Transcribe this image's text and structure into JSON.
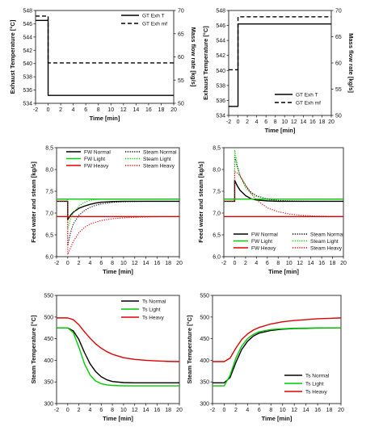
{
  "chart_data": [
    {
      "id": "p1",
      "type": "line",
      "xlabel": "Time [min]",
      "ylabel": "Exhaust Temperature [°C]",
      "ylabel2": "Mass flow rate [kg/s]",
      "xlim": [
        -2,
        20
      ],
      "ylim": [
        534,
        548
      ],
      "ylim2": [
        50,
        70
      ],
      "xticks": [
        "-2",
        "0",
        "2",
        "4",
        "6",
        "8",
        "10",
        "12",
        "14",
        "16",
        "18",
        "20"
      ],
      "yticks": [
        "534",
        "536",
        "538",
        "540",
        "542",
        "544",
        "546",
        "548"
      ],
      "yticks2": [
        "50",
        "55",
        "60",
        "65",
        "70"
      ],
      "legend_position": "top-right",
      "series": [
        {
          "name": "GT Exh T",
          "axis": "left",
          "color": "#000000",
          "dash": "solid",
          "x": [
            -2,
            0,
            0,
            20
          ],
          "y": [
            546.5,
            546.5,
            535.2,
            535.2
          ]
        },
        {
          "name": "GT Exh mf",
          "axis": "right",
          "color": "#000000",
          "dash": "dashed",
          "x": [
            -2,
            0,
            0,
            20
          ],
          "y": [
            68.8,
            68.8,
            58.7,
            58.7
          ]
        }
      ]
    },
    {
      "id": "p2",
      "type": "line",
      "xlabel": "Time [min]",
      "ylabel": "Exhaust Temperature [°C]",
      "ylabel2": "Mass flow rate [kg/s]",
      "xlim": [
        -2,
        20
      ],
      "ylim": [
        534,
        548
      ],
      "ylim2": [
        50,
        70
      ],
      "xticks": [
        "-2",
        "0",
        "2",
        "4",
        "6",
        "8",
        "10",
        "12",
        "14",
        "16",
        "18",
        "20"
      ],
      "yticks": [
        "534",
        "536",
        "538",
        "540",
        "542",
        "544",
        "546",
        "548"
      ],
      "yticks2": [
        "50",
        "55",
        "60",
        "65",
        "70"
      ],
      "legend_position": "bottom-right",
      "series": [
        {
          "name": "GT Exh T",
          "axis": "left",
          "color": "#000000",
          "dash": "solid",
          "x": [
            -2,
            0,
            0,
            20
          ],
          "y": [
            535.2,
            535.2,
            546.2,
            546.2
          ]
        },
        {
          "name": "GT Exh mf",
          "axis": "right",
          "color": "#000000",
          "dash": "dashed",
          "x": [
            -2,
            0,
            0,
            20
          ],
          "y": [
            58.7,
            58.7,
            68.8,
            68.8
          ]
        }
      ]
    },
    {
      "id": "p3",
      "type": "line",
      "xlabel": "Time [min]",
      "ylabel": "Feed water and steam [kg/s]",
      "xlim": [
        -2,
        20
      ],
      "ylim": [
        6.0,
        8.5
      ],
      "xticks": [
        "-2",
        "0",
        "2",
        "4",
        "6",
        "8",
        "10",
        "12",
        "14",
        "16",
        "18",
        "20"
      ],
      "yticks": [
        "6,0",
        "6,5",
        "7,0",
        "7,5",
        "8,0",
        "8,5"
      ],
      "legend_position": "top",
      "series": [
        {
          "name": "FW Normal",
          "color": "#000000",
          "dash": "solid",
          "x": [
            -2,
            0,
            0,
            0.5,
            1,
            2,
            3,
            4,
            5,
            6,
            8,
            10,
            14,
            20
          ],
          "y": [
            7.27,
            7.27,
            6.85,
            6.95,
            7.02,
            7.11,
            7.16,
            7.2,
            7.23,
            7.25,
            7.265,
            7.27,
            7.27,
            7.27
          ]
        },
        {
          "name": "FW Light",
          "color": "#00cc00",
          "dash": "solid",
          "x": [
            -2,
            20
          ],
          "y": [
            7.32,
            7.32
          ]
        },
        {
          "name": "FW Heavy",
          "color": "#e00000",
          "dash": "solid",
          "x": [
            -2,
            20
          ],
          "y": [
            6.92,
            6.92
          ]
        },
        {
          "name": "Steam Normal",
          "color": "#000000",
          "dash": "dotted",
          "x": [
            -2,
            0,
            0,
            0.5,
            1,
            2,
            3,
            4,
            5,
            6,
            8,
            10,
            14,
            20
          ],
          "y": [
            7.27,
            7.27,
            6.25,
            6.55,
            6.75,
            6.95,
            7.06,
            7.13,
            7.18,
            7.21,
            7.245,
            7.26,
            7.27,
            7.27
          ]
        },
        {
          "name": "Steam Light",
          "color": "#00cc00",
          "dash": "dotted",
          "x": [
            -2,
            0,
            0,
            0.5,
            1,
            2,
            3,
            4,
            5,
            6,
            8,
            20
          ],
          "y": [
            7.32,
            7.32,
            6.65,
            6.85,
            7.0,
            7.16,
            7.25,
            7.29,
            7.31,
            7.32,
            7.32,
            7.32
          ]
        },
        {
          "name": "Steam Heavy",
          "color": "#e00000",
          "dash": "dotted",
          "x": [
            -2,
            0,
            0,
            0.5,
            1,
            2,
            3,
            4,
            6,
            8,
            10,
            12,
            15,
            20
          ],
          "y": [
            7.27,
            7.27,
            6.05,
            6.2,
            6.35,
            6.55,
            6.67,
            6.75,
            6.83,
            6.87,
            6.89,
            6.905,
            6.915,
            6.92
          ]
        }
      ]
    },
    {
      "id": "p4",
      "type": "line",
      "xlabel": "Time [min]",
      "ylabel": "Feed water and steam [kg/s]",
      "xlim": [
        -2,
        20
      ],
      "ylim": [
        6.0,
        8.5
      ],
      "xticks": [
        "-2",
        "0",
        "2",
        "4",
        "6",
        "8",
        "10",
        "12",
        "14",
        "16",
        "18",
        "20"
      ],
      "yticks": [
        "6,0",
        "6,5",
        "7,0",
        "7,5",
        "8,0",
        "8,5"
      ],
      "legend_position": "bottom",
      "series": [
        {
          "name": "FW Normal",
          "color": "#000000",
          "dash": "solid",
          "x": [
            -2,
            0,
            0,
            0.5,
            1,
            2,
            3,
            4,
            6,
            8,
            20
          ],
          "y": [
            7.27,
            7.27,
            7.75,
            7.62,
            7.52,
            7.4,
            7.33,
            7.3,
            7.28,
            7.27,
            7.27
          ]
        },
        {
          "name": "FW Light",
          "color": "#00cc00",
          "dash": "solid",
          "x": [
            -2,
            20
          ],
          "y": [
            7.32,
            7.32
          ]
        },
        {
          "name": "FW Heavy",
          "color": "#e00000",
          "dash": "solid",
          "x": [
            -2,
            20
          ],
          "y": [
            6.92,
            6.92
          ]
        },
        {
          "name": "Steam Normal",
          "color": "#000000",
          "dash": "dotted",
          "x": [
            -2,
            0,
            0,
            0.5,
            1,
            2,
            3,
            4,
            6,
            8,
            10,
            14,
            20
          ],
          "y": [
            7.27,
            7.27,
            8.3,
            8.05,
            7.85,
            7.62,
            7.48,
            7.4,
            7.32,
            7.29,
            7.28,
            7.27,
            7.27
          ]
        },
        {
          "name": "Steam Light",
          "color": "#00cc00",
          "dash": "dotted",
          "x": [
            -2,
            0,
            0,
            0.5,
            1,
            2,
            3,
            4,
            5,
            6,
            8,
            20
          ],
          "y": [
            7.32,
            7.32,
            8.45,
            8.1,
            7.85,
            7.58,
            7.45,
            7.38,
            7.35,
            7.33,
            7.32,
            7.32
          ]
        },
        {
          "name": "Steam Heavy",
          "color": "#e00000",
          "dash": "dotted",
          "x": [
            -2,
            0,
            0,
            0.5,
            1,
            2,
            3,
            4,
            6,
            8,
            10,
            12,
            15,
            20
          ],
          "y": [
            7.27,
            7.27,
            7.95,
            7.92,
            7.85,
            7.65,
            7.45,
            7.3,
            7.12,
            7.03,
            6.98,
            6.95,
            6.93,
            6.92
          ]
        }
      ]
    },
    {
      "id": "p5",
      "type": "line",
      "xlabel": "Time [min]",
      "ylabel": "Steam Temperature [°C]",
      "xlim": [
        -2,
        20
      ],
      "ylim": [
        300,
        550
      ],
      "xticks": [
        "-2",
        "0",
        "2",
        "4",
        "6",
        "8",
        "10",
        "12",
        "14",
        "16",
        "18",
        "20"
      ],
      "yticks": [
        "300",
        "350",
        "400",
        "450",
        "500",
        "550"
      ],
      "legend_position": "top-right",
      "series": [
        {
          "name": "Ts Normal",
          "color": "#000000",
          "dash": "solid",
          "x": [
            -2,
            0,
            1,
            2,
            3,
            4,
            5,
            6,
            7,
            8,
            10,
            12,
            15,
            20
          ],
          "y": [
            475,
            475,
            468,
            448,
            418,
            392,
            374,
            362,
            355,
            351,
            348.5,
            348,
            348,
            348
          ]
        },
        {
          "name": "Ts Light",
          "color": "#00cc00",
          "dash": "solid",
          "x": [
            -2,
            0,
            1,
            2,
            3,
            4,
            5,
            6,
            7,
            8,
            10,
            14,
            20
          ],
          "y": [
            475,
            475,
            464,
            430,
            392,
            366,
            352,
            346,
            343,
            342,
            341,
            341,
            341
          ]
        },
        {
          "name": "Ts Heavy",
          "color": "#e00000",
          "dash": "solid",
          "x": [
            -2,
            0,
            1,
            2,
            3,
            4,
            5,
            6,
            7,
            8,
            10,
            12,
            14,
            16,
            18,
            20
          ],
          "y": [
            498,
            498,
            494,
            482,
            466,
            451,
            438,
            428,
            420,
            414,
            406,
            402,
            400,
            398.5,
            397.5,
            397
          ]
        }
      ]
    },
    {
      "id": "p6",
      "type": "line",
      "xlabel": "Time [min]",
      "ylabel": "Steam Temperature [°C]",
      "xlim": [
        -2,
        20
      ],
      "ylim": [
        300,
        550
      ],
      "xticks": [
        "-2",
        "0",
        "2",
        "4",
        "6",
        "8",
        "10",
        "12",
        "14",
        "16",
        "18",
        "20"
      ],
      "yticks": [
        "300",
        "350",
        "400",
        "450",
        "500",
        "550"
      ],
      "legend_position": "bottom-right",
      "series": [
        {
          "name": "Ts Normal",
          "color": "#000000",
          "dash": "solid",
          "x": [
            -2,
            0,
            1,
            2,
            3,
            4,
            5,
            6,
            8,
            10,
            12,
            14,
            16,
            20
          ],
          "y": [
            348,
            348,
            360,
            395,
            425,
            444,
            456,
            463,
            469,
            472,
            473.5,
            474,
            474.5,
            475
          ]
        },
        {
          "name": "Ts Light",
          "color": "#00cc00",
          "dash": "solid",
          "x": [
            -2,
            0,
            1,
            2,
            3,
            4,
            5,
            6,
            8,
            10,
            12,
            14,
            16,
            20
          ],
          "y": [
            341,
            341,
            365,
            405,
            433,
            450,
            460,
            466,
            471,
            473,
            474,
            474.5,
            475,
            475
          ]
        },
        {
          "name": "Ts Heavy",
          "color": "#e00000",
          "dash": "solid",
          "x": [
            -2,
            0,
            1,
            2,
            3,
            4,
            5,
            6,
            8,
            10,
            12,
            14,
            16,
            18,
            20
          ],
          "y": [
            397,
            397,
            405,
            428,
            448,
            461,
            470,
            476,
            484,
            489,
            492,
            494,
            496,
            497,
            498
          ]
        }
      ]
    }
  ]
}
